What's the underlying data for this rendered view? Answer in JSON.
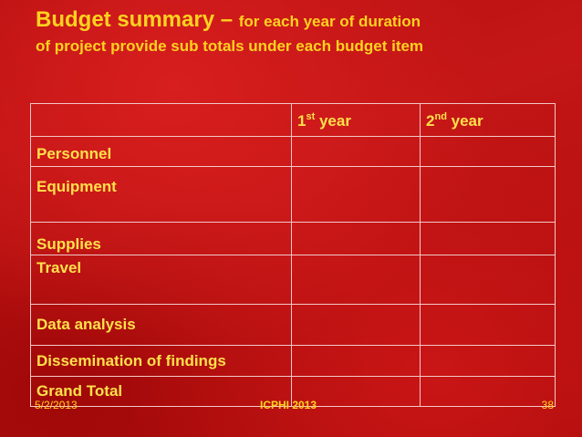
{
  "slide": {
    "title_main": "Budget summary – ",
    "title_sub": "for each year of duration",
    "title_line2": "of project provide sub totals under each budget item"
  },
  "table": {
    "header": {
      "col2_base": "1",
      "col2_sup": "st",
      "col2_tail": " year",
      "col3_base": "2",
      "col3_sup": "nd",
      "col3_tail": " year"
    },
    "rows": [
      "Personnel",
      "Equipment",
      "Supplies",
      "Travel",
      "Data analysis",
      "Dissemination of findings",
      "Grand Total"
    ]
  },
  "footer": {
    "date": "5/2/2013",
    "center": "ICPHI 2013",
    "page_number": "38"
  },
  "colors": {
    "background": "#c41616",
    "text": "#ffd21f",
    "table_border": "#f2c8c8"
  }
}
